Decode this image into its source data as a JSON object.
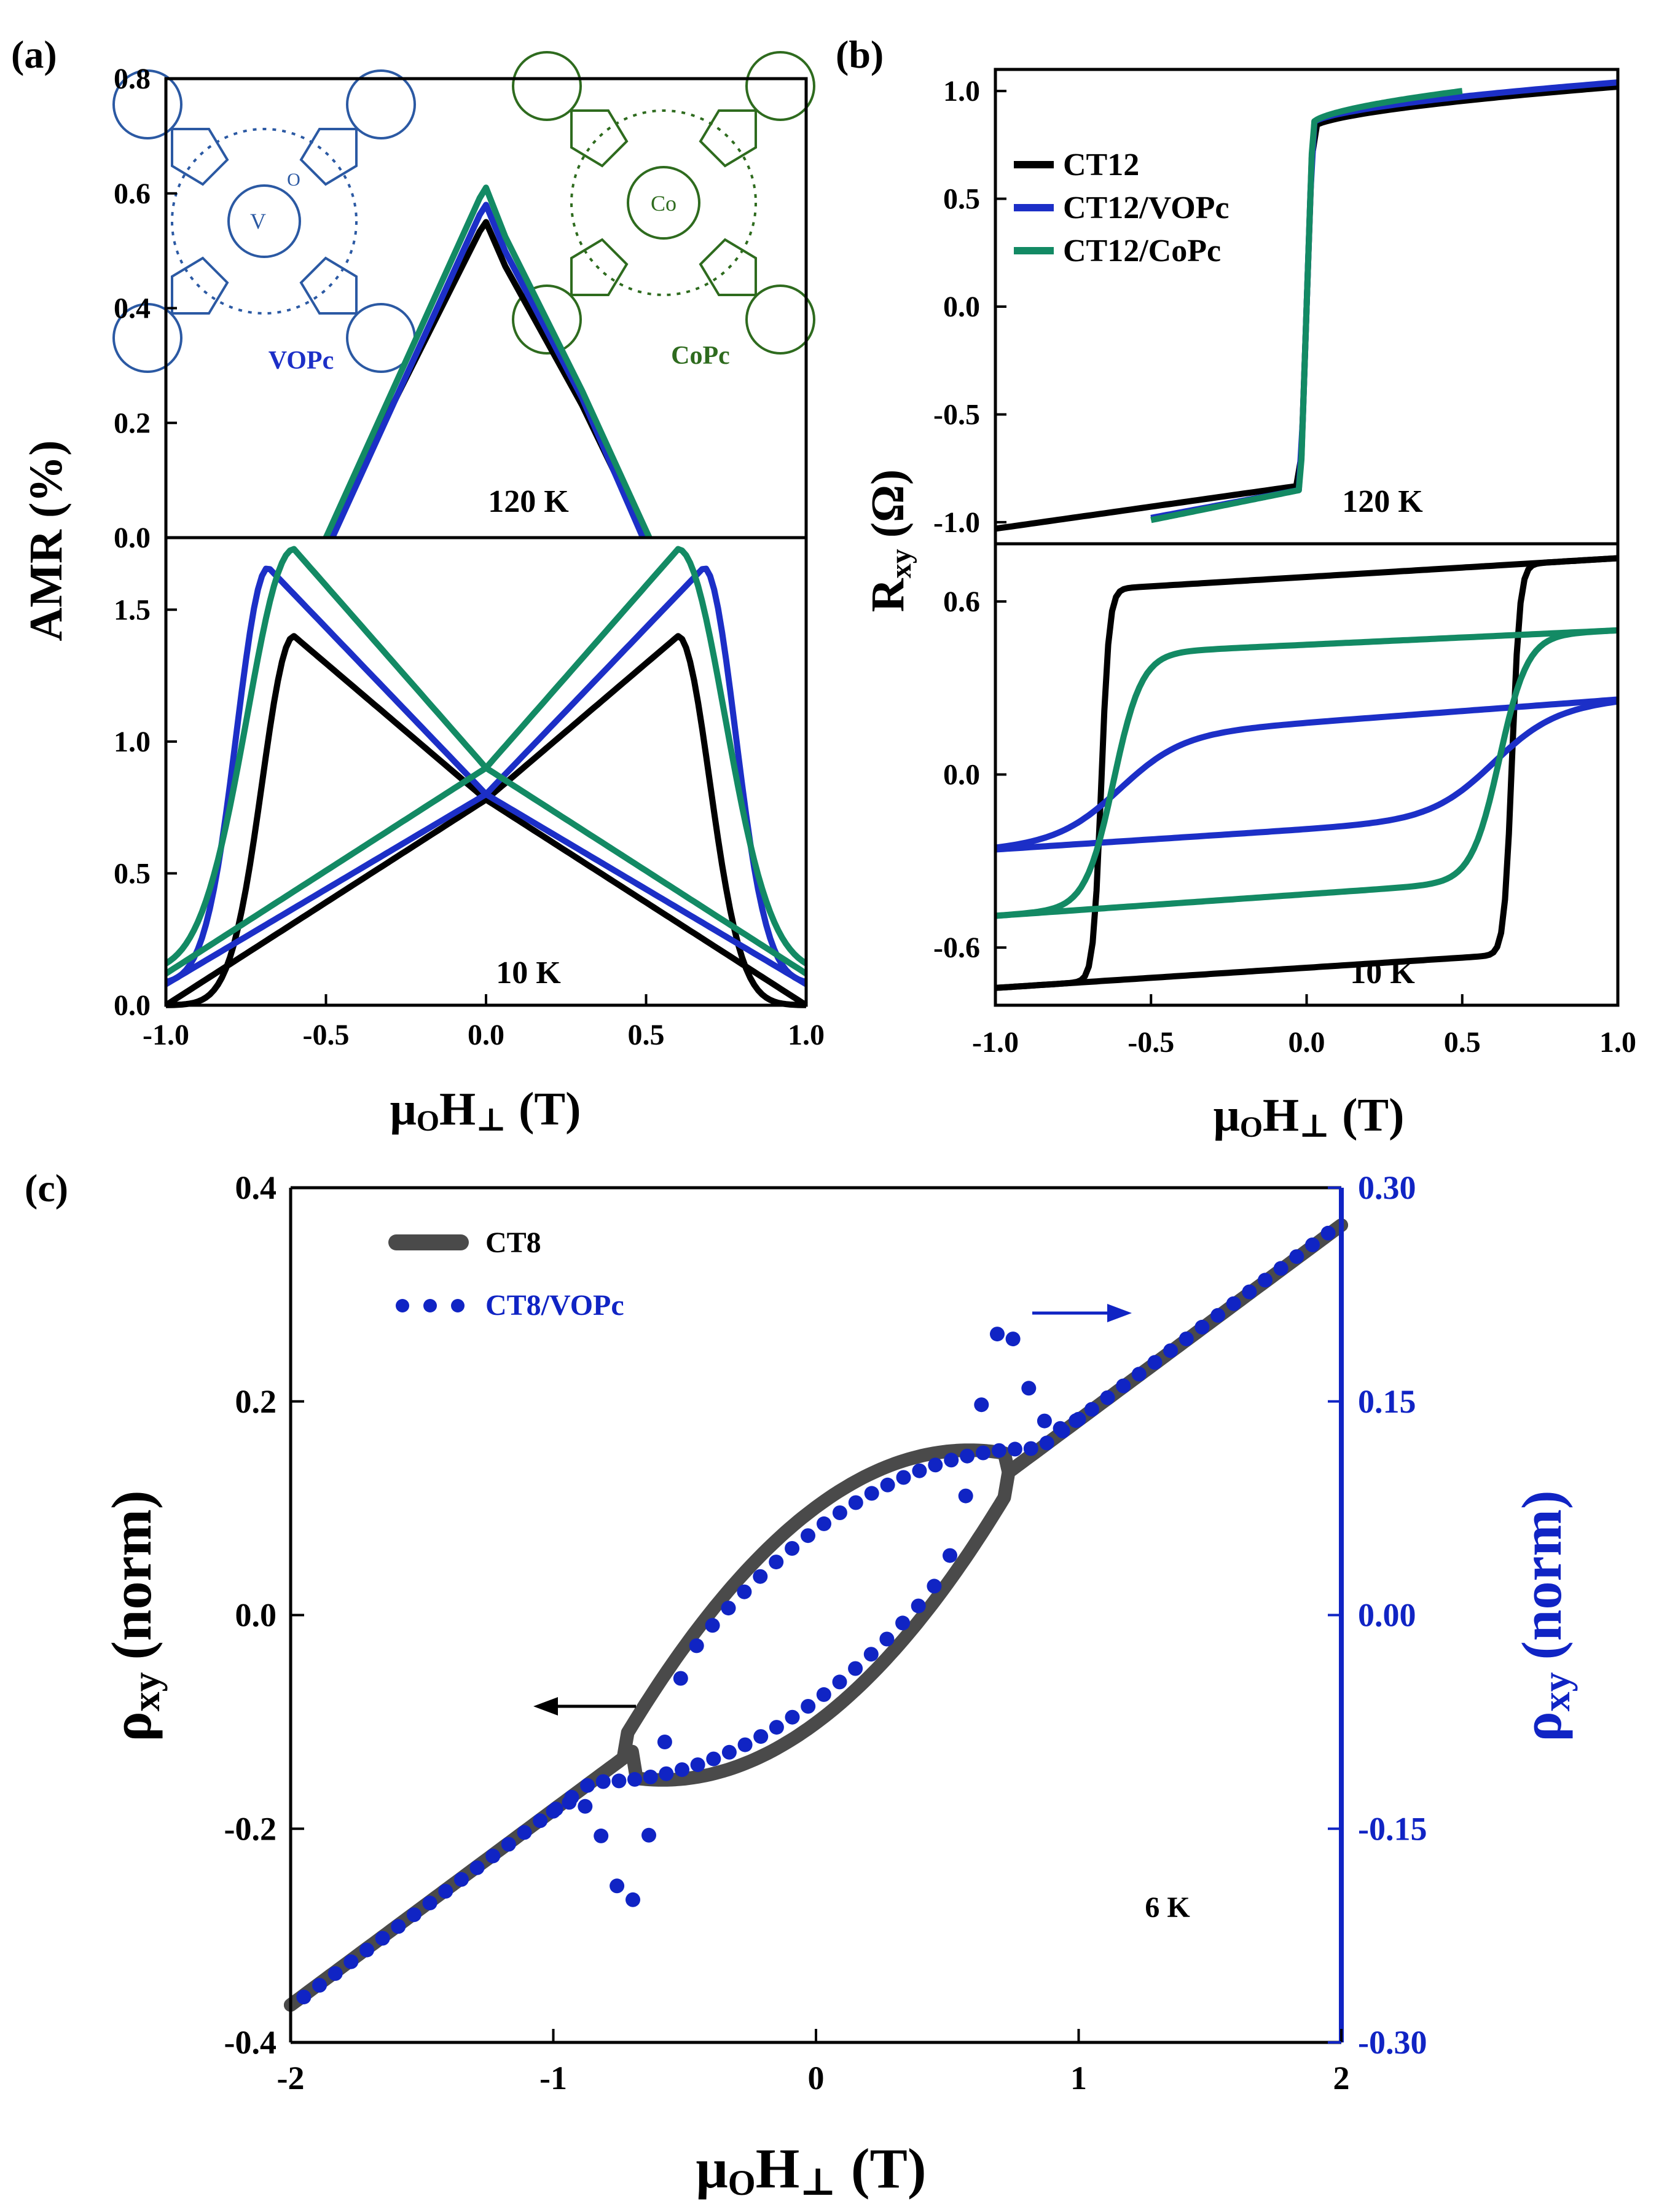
{
  "figure": {
    "size_note": "three-panel magnetotransport figure"
  },
  "chart_data": [
    {
      "id": "a",
      "type": "line",
      "panel_label": "(a)",
      "ylabel": "AMR (%)",
      "xlabel_main": "μ",
      "xlabel_sub": "O",
      "xlabel_tail": "H",
      "xlabel_perp": "⊥",
      "xlabel_unit": "(T)",
      "xlim": [
        -1.0,
        1.0
      ],
      "xticks": [
        "-1.0",
        "-0.5",
        "0.0",
        "0.5",
        "1.0"
      ],
      "xtick_values": [
        -1.0,
        -0.5,
        0.0,
        0.5,
        1.0
      ],
      "top": {
        "annotation": "120 K",
        "ylim": [
          0.0,
          0.8
        ],
        "yticks": [
          "0.0",
          "0.2",
          "0.4",
          "0.6",
          "0.8"
        ],
        "ytick_values": [
          0.0,
          0.2,
          0.4,
          0.6,
          0.8
        ],
        "molecules": [
          {
            "name": "VOPc",
            "metal": "V",
            "oxo": "O",
            "color": "#2b59a3"
          },
          {
            "name": "CoPc",
            "metal": "Co",
            "color": "#2e6b1e"
          }
        ],
        "series": [
          {
            "name": "CT12",
            "color": "#000000",
            "apex": [
              0.0,
              0.55
            ],
            "base_left": -0.5,
            "base_right": 0.5
          },
          {
            "name": "CT12/VOPc",
            "color": "#1c2fc7",
            "apex": [
              0.0,
              0.58
            ],
            "base_left": -0.48,
            "base_right": 0.49
          },
          {
            "name": "CT12/CoPc",
            "color": "#138a64",
            "apex": [
              0.0,
              0.61
            ],
            "base_left": -0.5,
            "base_right": 0.51
          }
        ]
      },
      "bottom": {
        "annotation": "10 K",
        "ylim": [
          0.0,
          1.75
        ],
        "yticks": [
          "0.0",
          "0.5",
          "1.0",
          "1.5"
        ],
        "ytick_values": [
          0.0,
          0.5,
          1.0,
          1.5
        ],
        "series": [
          {
            "name": "CT12",
            "color": "#000000",
            "peak_x": 0.6,
            "peak_y": 1.4,
            "end_y": 0.0,
            "cross_y": 0.78,
            "onset_x": 0.85
          },
          {
            "name": "CT12/VOPc",
            "color": "#1c2fc7",
            "peak_x": 0.68,
            "peak_y": 1.66,
            "end_y": 0.08,
            "cross_y": 0.8,
            "onset_x": 0.93
          },
          {
            "name": "CT12/CoPc",
            "color": "#138a64",
            "peak_x": 0.6,
            "peak_y": 1.73,
            "end_y": 0.12,
            "cross_y": 0.9,
            "onset_x": 0.97
          }
        ]
      }
    },
    {
      "id": "b",
      "type": "line",
      "panel_label": "(b)",
      "ylabel_main": "R",
      "ylabel_sub": "xy",
      "ylabel_unit": "(Ω)",
      "xlabel_main": "μ",
      "xlabel_sub": "O",
      "xlabel_tail": "H",
      "xlabel_perp": "⊥",
      "xlabel_unit": "(T)",
      "xlim": [
        -1.0,
        1.0
      ],
      "xticks": [
        "-1.0",
        "-0.5",
        "0.0",
        "0.5",
        "1.0"
      ],
      "xtick_values": [
        -1.0,
        -0.5,
        0.0,
        0.5,
        1.0
      ],
      "legend": [
        "CT12",
        "CT12/VOPc",
        "CT12/CoPc"
      ],
      "top": {
        "annotation": "120 K",
        "ylim": [
          -1.1,
          1.1
        ],
        "yticks": [
          "-1.0",
          "-0.5",
          "0.0",
          "0.5",
          "1.0"
        ],
        "ytick_values": [
          -1.0,
          -0.5,
          0.0,
          0.5,
          1.0
        ],
        "series": [
          {
            "name": "CT12",
            "color": "#000000",
            "x_range": [
              -1.0,
              1.0
            ],
            "neg": [
              -1.03,
              -0.83
            ],
            "pos": [
              0.83,
              1.02
            ]
          },
          {
            "name": "CT12/VOPc",
            "color": "#1c2fc7",
            "x_range": [
              -0.5,
              1.0
            ],
            "neg": [
              -0.98,
              -0.85
            ],
            "pos": [
              0.85,
              1.04
            ]
          },
          {
            "name": "CT12/CoPc",
            "color": "#138a64",
            "x_range": [
              -0.5,
              0.5
            ],
            "neg": [
              -0.99,
              -0.85
            ],
            "pos": [
              0.85,
              1.0
            ]
          }
        ]
      },
      "bottom": {
        "annotation": "10 K",
        "ylim": [
          -0.8,
          0.8
        ],
        "yticks": [
          "-0.6",
          "0.0",
          "0.6"
        ],
        "ytick_values": [
          -0.6,
          0.0,
          0.6
        ],
        "series": [
          {
            "name": "CT12",
            "color": "#000000",
            "coercive": 0.66,
            "sat_low": [
              -0.74,
              -0.6
            ],
            "sat_high": [
              0.62,
              0.75
            ]
          },
          {
            "name": "CT12/VOPc",
            "color": "#1c2fc7",
            "coercive": 0.6,
            "sat_low": [
              -0.26,
              -0.12
            ],
            "sat_high": [
              0.1,
              0.26
            ]
          },
          {
            "name": "CT12/CoPc",
            "color": "#138a64",
            "coercive": 0.62,
            "sat_low": [
              -0.49,
              -0.34
            ],
            "sat_high": [
              0.4,
              0.5
            ]
          }
        ]
      }
    },
    {
      "id": "c",
      "type": "line",
      "panel_label": "(c)",
      "annotation": "6 K",
      "xlabel_main": "μ",
      "xlabel_sub": "O",
      "xlabel_tail": "H",
      "xlabel_perp": "⊥",
      "xlabel_unit": "(T)",
      "xlim": [
        -2,
        2
      ],
      "xticks": [
        "-2",
        "-1",
        "0",
        "1",
        "2"
      ],
      "xtick_values": [
        -2,
        -1,
        0,
        1,
        2
      ],
      "left_axis": {
        "label_main": "ρ",
        "label_sub": "xy",
        "label_tail": "(norm)",
        "ylim": [
          -0.4,
          0.4
        ],
        "yticks": [
          "-0.4",
          "-0.2",
          "0.0",
          "0.2",
          "0.4"
        ],
        "ytick_values": [
          -0.4,
          -0.2,
          0.0,
          0.2,
          0.4
        ],
        "color": "#000000"
      },
      "right_axis": {
        "label_main": "ρ",
        "label_sub": "xy",
        "label_tail": "(norm)",
        "ylim": [
          -0.3,
          0.3
        ],
        "yticks": [
          "-0.30",
          "-0.15",
          "0.00",
          "0.15",
          "0.30"
        ],
        "ytick_values": [
          -0.3,
          -0.15,
          0.0,
          0.15,
          0.3
        ],
        "color": "#1024c4"
      },
      "legend": [
        {
          "name": "CT8",
          "style": "line",
          "color": "#4a4a4a"
        },
        {
          "name": "CT8/VOPc",
          "style": "dots",
          "color": "#1024c4"
        }
      ],
      "series": [
        {
          "name": "CT8",
          "axis": "left",
          "color": "#4a4a4a",
          "linear_slope": 0.1825,
          "end_values": [
            -0.365,
            0.365
          ],
          "jump_field": 0.72,
          "loop_max_offset": 0.09
        },
        {
          "name": "CT8/VOPc",
          "axis": "right",
          "color": "#1024c4",
          "linear_slope": 0.1375,
          "end_values": [
            -0.275,
            0.275
          ],
          "peak": [
            0.7,
            0.22
          ],
          "dip": [
            -0.7,
            -0.22
          ],
          "loop_max_offset": 0.06
        }
      ]
    }
  ]
}
